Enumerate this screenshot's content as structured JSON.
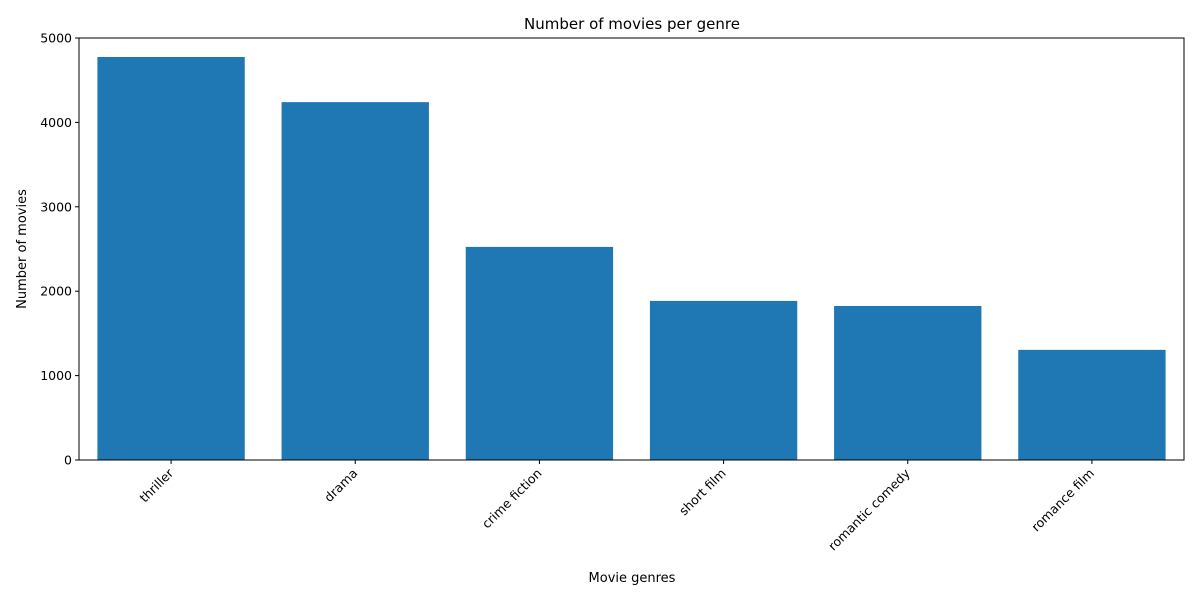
{
  "chart_data": {
    "type": "bar",
    "title": "Number of movies per genre",
    "xlabel": "Movie genres",
    "ylabel": "Number of movies",
    "categories": [
      "thriller",
      "drama",
      "crime fiction",
      "short film",
      "romantic comedy",
      "romance film"
    ],
    "values": [
      4775,
      4240,
      2525,
      1885,
      1825,
      1305
    ],
    "ylim": [
      0,
      5000
    ],
    "yticks": [
      0,
      1000,
      2000,
      3000,
      4000,
      5000
    ],
    "grid": false,
    "legend": "none",
    "bar_color": "#1f77b4"
  }
}
